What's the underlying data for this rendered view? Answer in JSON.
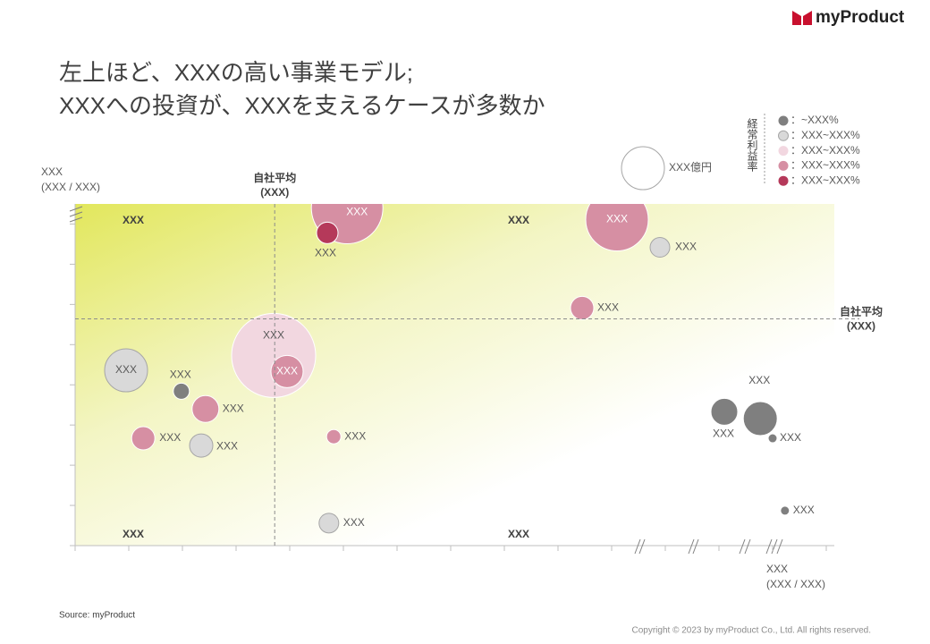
{
  "logo": "myProduct",
  "chart_data": {
    "type": "bubble",
    "title": [
      "左上ほど、XXXの高い事業モデル;",
      "XXXへの投資が、XXXを支えるケースが多数か"
    ],
    "y_label": [
      "XXX",
      "(XXX  / XXX)"
    ],
    "x_label": [
      "XXX",
      "(XXX  / XXX)"
    ],
    "x_average": 3.72,
    "y_average": 5.64,
    "x_average_label": [
      "自社平均",
      "(XXX)"
    ],
    "y_average_label": [
      "自社平均",
      "(XXX)"
    ],
    "quadrant_labels": [
      "XXX",
      "XXX",
      "XXX",
      "XXX"
    ],
    "xlim": [
      0,
      14.15
    ],
    "ylim": [
      0,
      8.5
    ],
    "xticks": [
      0,
      1,
      2,
      3,
      4,
      5,
      6,
      7,
      8,
      9,
      10,
      11,
      12,
      13,
      14
    ],
    "yticks": [
      0,
      1,
      2,
      3,
      4,
      5,
      6,
      7,
      8
    ],
    "legend_title": "経常利益率",
    "size_legend": {
      "size": 24,
      "label": "XXX億円"
    },
    "series": [
      {
        "name": "：~XXX%",
        "color": "#7f7f7f",
        "x": [
          1.98,
          12.1,
          12.77,
          13.0,
          13.23
        ],
        "values": [
          3.84,
          3.33,
          3.16,
          2.67,
          0.87
        ],
        "sizes": [
          9,
          15,
          19,
          5,
          5
        ],
        "labels": [
          "XXX",
          "XXX",
          "XXX",
          "XXX",
          "XXX"
        ]
      },
      {
        "name": "：XXX~XXX%",
        "color": "#d9d9d9",
        "x": [
          10.9,
          0.95,
          2.35,
          4.73
        ],
        "values": [
          7.42,
          4.36,
          2.49,
          0.56
        ],
        "sizes": [
          11,
          24,
          13,
          11
        ],
        "labels": [
          "XXX",
          "XXX",
          "XXX",
          "XXX"
        ]
      },
      {
        "name": "：XXX~XXX%",
        "color": "#f2d7e0",
        "x": [
          3.7
        ],
        "values": [
          4.73
        ],
        "sizes": [
          47
        ],
        "labels": [
          "XXX"
        ]
      },
      {
        "name": "：XXX~XXX%",
        "color": "#d68fa3",
        "x": [
          5.07,
          10.1,
          9.45,
          3.95,
          2.43,
          1.27,
          4.82
        ],
        "values": [
          8.4,
          8.11,
          5.91,
          4.33,
          3.4,
          2.67,
          2.71
        ],
        "sizes": [
          40,
          35,
          13,
          18,
          15,
          13,
          8
        ],
        "labels": [
          "XXX",
          "XXX",
          "XXX",
          "XXX",
          "XXX",
          "XXX",
          "XXX"
        ]
      },
      {
        "name": "：XXX~XXX%",
        "color": "#b5395a",
        "x": [
          4.7
        ],
        "values": [
          7.78
        ],
        "sizes": [
          12
        ],
        "labels": [
          "XXX"
        ]
      }
    ],
    "source": "Source: myProduct",
    "copyright": "Copyright © 2023 by myProduct Co., Ltd.  All rights reserved."
  }
}
